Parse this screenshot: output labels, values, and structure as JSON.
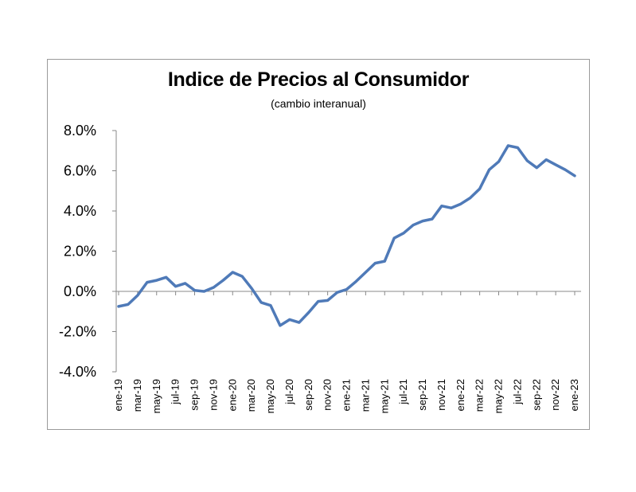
{
  "chart_data": {
    "type": "line",
    "title": "Indice de Precios al Consumidor",
    "subtitle": "(cambio interanual)",
    "xlabel": "",
    "ylabel": "",
    "ylim": [
      -4.0,
      8.0
    ],
    "yticks": [
      "8.0%",
      "6.0%",
      "4.0%",
      "2.0%",
      "0.0%",
      "-2.0%",
      "-4.0%"
    ],
    "ytick_values": [
      8,
      6,
      4,
      2,
      0,
      -2,
      -4
    ],
    "grid": false,
    "legend": "none",
    "line_color": "#4f7ab8",
    "xtick_labels": [
      "ene-19",
      "mar-19",
      "may-19",
      "jul-19",
      "sep-19",
      "nov-19",
      "ene-20",
      "mar-20",
      "may-20",
      "jul-20",
      "sep-20",
      "nov-20",
      "ene-21",
      "mar-21",
      "may-21",
      "jul-21",
      "sep-21",
      "nov-21",
      "ene-22",
      "mar-22",
      "may-22",
      "jul-22",
      "sep-22",
      "nov-22",
      "ene-23"
    ],
    "x": [
      "ene-19",
      "feb-19",
      "mar-19",
      "abr-19",
      "may-19",
      "jun-19",
      "jul-19",
      "ago-19",
      "sep-19",
      "oct-19",
      "nov-19",
      "dic-19",
      "ene-20",
      "feb-20",
      "mar-20",
      "abr-20",
      "may-20",
      "jun-20",
      "jul-20",
      "ago-20",
      "sep-20",
      "oct-20",
      "nov-20",
      "dic-20",
      "ene-21",
      "feb-21",
      "mar-21",
      "abr-21",
      "may-21",
      "jun-21",
      "jul-21",
      "ago-21",
      "sep-21",
      "oct-21",
      "nov-21",
      "dic-21",
      "ene-22",
      "feb-22",
      "mar-22",
      "abr-22",
      "may-22",
      "jun-22",
      "jul-22",
      "ago-22",
      "sep-22",
      "oct-22",
      "nov-22",
      "dic-22",
      "ene-23"
    ],
    "series": [
      {
        "values": [
          -0.75,
          -0.65,
          -0.2,
          0.45,
          0.55,
          0.7,
          0.25,
          0.4,
          0.05,
          0.0,
          0.2,
          0.55,
          0.95,
          0.75,
          0.15,
          -0.55,
          -0.7,
          -1.7,
          -1.4,
          -1.55,
          -1.05,
          -0.5,
          -0.45,
          -0.05,
          0.1,
          0.5,
          0.95,
          1.4,
          1.5,
          2.65,
          2.9,
          3.3,
          3.5,
          3.6,
          4.25,
          4.15,
          4.35,
          4.65,
          5.1,
          6.05,
          6.45,
          7.25,
          7.15,
          6.5,
          6.15,
          6.55,
          6.3,
          6.05,
          5.75
        ]
      }
    ]
  }
}
